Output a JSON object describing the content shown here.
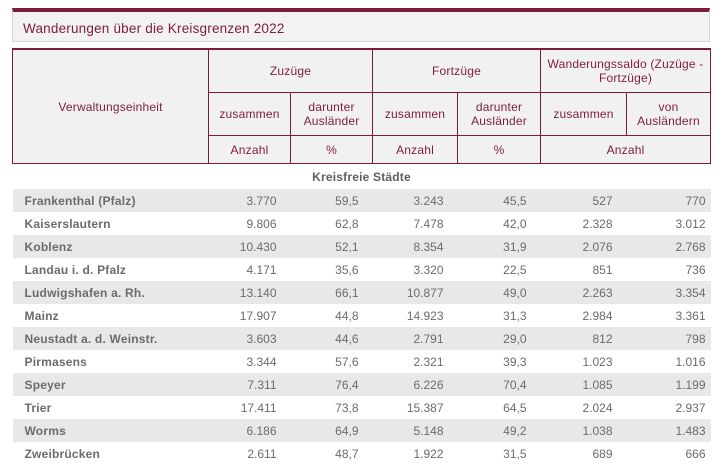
{
  "title": "Wanderungen über die Kreisgrenzen 2022",
  "colors": {
    "accent_maroon": "#7d1c3c",
    "title_bg": "#f2f2f2",
    "header_bg": "#f2f1f2",
    "alt_row_bg": "#e8e8e8",
    "text_gray": "#6b6b6b"
  },
  "table": {
    "header": {
      "unit_col": "Verwaltungseinheit",
      "groups": [
        "Zuzüge",
        "Fortzüge",
        "Wanderungssaldo (Zuzüge - Fortzüge)"
      ],
      "sub": [
        "zusammen",
        "darunter Ausländer",
        "zusammen",
        "darunter Ausländer",
        "zusammen",
        "von Ausländern"
      ],
      "units": [
        "Anzahl",
        "%",
        "Anzahl",
        "%",
        "Anzahl"
      ]
    },
    "section": "Kreisfreie Städte",
    "rows": [
      {
        "name": "Frankenthal (Pfalz)",
        "values": [
          "3.770",
          "59,5",
          "3.243",
          "45,5",
          "527",
          "770"
        ]
      },
      {
        "name": "Kaiserslautern",
        "values": [
          "9.806",
          "62,8",
          "7.478",
          "42,0",
          "2.328",
          "3.012"
        ]
      },
      {
        "name": "Koblenz",
        "values": [
          "10.430",
          "52,1",
          "8.354",
          "31,9",
          "2.076",
          "2.768"
        ]
      },
      {
        "name": "Landau i. d. Pfalz",
        "values": [
          "4.171",
          "35,6",
          "3.320",
          "22,5",
          "851",
          "736"
        ]
      },
      {
        "name": "Ludwigshafen a. Rh.",
        "values": [
          "13.140",
          "66,1",
          "10.877",
          "49,0",
          "2.263",
          "3.354"
        ]
      },
      {
        "name": "Mainz",
        "values": [
          "17.907",
          "44,8",
          "14.923",
          "31,3",
          "2.984",
          "3.361"
        ]
      },
      {
        "name": "Neustadt a. d. Weinstr.",
        "values": [
          "3.603",
          "44,6",
          "2.791",
          "29,0",
          "812",
          "798"
        ]
      },
      {
        "name": "Pirmasens",
        "values": [
          "3.344",
          "57,6",
          "2.321",
          "39,3",
          "1.023",
          "1.016"
        ]
      },
      {
        "name": "Speyer",
        "values": [
          "7.311",
          "76,4",
          "6.226",
          "70,4",
          "1.085",
          "1.199"
        ]
      },
      {
        "name": "Trier",
        "values": [
          "17.411",
          "73,8",
          "15.387",
          "64,5",
          "2.024",
          "2.937"
        ]
      },
      {
        "name": "Worms",
        "values": [
          "6.186",
          "64,9",
          "5.148",
          "49,2",
          "1.038",
          "1.483"
        ]
      },
      {
        "name": "Zweibrücken",
        "values": [
          "2.611",
          "48,7",
          "1.922",
          "31,5",
          "689",
          "666"
        ]
      }
    ]
  }
}
